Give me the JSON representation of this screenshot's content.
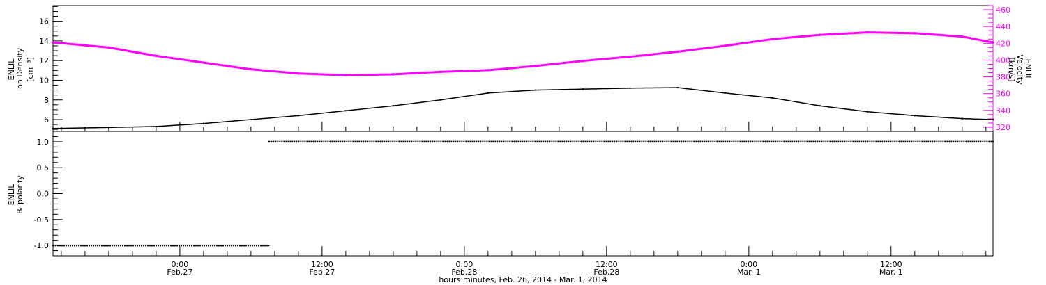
{
  "chart_data": [
    {
      "type": "line",
      "panel": "top",
      "xlabel": "hours:minutes, Feb. 26, 2014 - Mar.  1, 2014",
      "x_ticks": [
        {
          "time": "0:00",
          "date": "Feb.27",
          "hours": 0
        },
        {
          "time": "12:00",
          "date": "Feb.27",
          "hours": 12
        },
        {
          "time": "0:00",
          "date": "Feb.28",
          "hours": 24
        },
        {
          "time": "12:00",
          "date": "Feb.28",
          "hours": 36
        },
        {
          "time": "0:00",
          "date": "Mar. 1",
          "hours": 48
        },
        {
          "time": "12:00",
          "date": "Mar. 1",
          "hours": 60
        }
      ],
      "xlim_hours": [
        -10.7,
        68.6
      ],
      "left_axis": {
        "label_lines": [
          "ENLIL",
          "Ion Density",
          "[cm⁻³]"
        ],
        "ylim": [
          4.8,
          17.6
        ],
        "ticks": [
          "6",
          "8",
          "10",
          "12",
          "14",
          "16"
        ],
        "color": "#000000"
      },
      "right_axis": {
        "label_lines": [
          "ENLIL",
          "Velocity",
          "[km/s]"
        ],
        "ylim": [
          315,
          465
        ],
        "ticks": [
          "320",
          "340",
          "360",
          "380",
          "400",
          "420",
          "440",
          "460"
        ],
        "color": "#ff00ff"
      },
      "series": [
        {
          "axis": "left",
          "color": "#000000",
          "x_hours": [
            -10.7,
            -6,
            -2,
            2,
            6,
            10,
            14,
            18,
            22,
            26,
            30,
            34,
            38,
            42,
            46,
            50,
            54,
            58,
            62,
            66,
            68.6
          ],
          "values": [
            5.1,
            5.2,
            5.3,
            5.6,
            6.0,
            6.4,
            6.9,
            7.4,
            8.0,
            8.7,
            9.0,
            9.1,
            9.2,
            9.25,
            8.7,
            8.2,
            7.4,
            6.8,
            6.4,
            6.1,
            6.0
          ]
        },
        {
          "axis": "right",
          "color": "#ff00ff",
          "x_hours": [
            -10.7,
            -6,
            -2,
            2,
            6,
            10,
            14,
            18,
            22,
            26,
            30,
            34,
            38,
            42,
            46,
            50,
            54,
            58,
            62,
            66,
            68.6
          ],
          "values": [
            421,
            415,
            405,
            397,
            389,
            384,
            382,
            383,
            386,
            388,
            393,
            399,
            404,
            410,
            417,
            425,
            430,
            433,
            432,
            428,
            421
          ]
        }
      ]
    },
    {
      "type": "line",
      "panel": "bottom",
      "ylabel_lines": [
        "ENLIL",
        "Bᵣ polarity"
      ],
      "ylim": [
        -1.2,
        1.2
      ],
      "y_ticks": [
        "1.0",
        "0.5",
        "0.0",
        "-0.5",
        "-1.0"
      ],
      "y_tick_values": [
        1.0,
        0.5,
        0.0,
        -0.5,
        -1.0
      ],
      "series": [
        {
          "color": "#000000",
          "x_hours": [
            -10.7,
            7.5,
            7.5,
            68.6
          ],
          "values": [
            -1,
            -1,
            1,
            1
          ]
        }
      ]
    }
  ]
}
